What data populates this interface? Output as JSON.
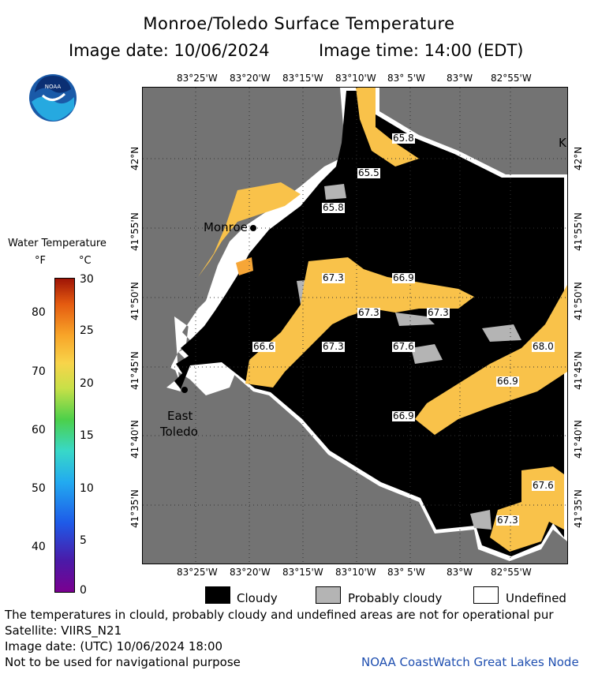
{
  "header": {
    "title": "Monroe/Toledo Surface Temperature",
    "image_date": "Image date: 10/06/2024",
    "image_time": "Image time: 14:00 (EDT)"
  },
  "logo": {
    "text": "NOAA"
  },
  "colorbar": {
    "title": "Water Temperature",
    "unit_f": "°F",
    "unit_c": "°C",
    "f_ticks": [
      "80",
      "70",
      "60",
      "50",
      "40"
    ],
    "c_ticks": [
      "30",
      "25",
      "20",
      "15",
      "10",
      "5",
      "0"
    ]
  },
  "map": {
    "lon_ticks": [
      "83°25'W",
      "83°20'W",
      "83°15'W",
      "83°10'W",
      "83° 5'W",
      "83°W",
      "82°55'W"
    ],
    "lat_ticks": [
      "42°N",
      "41°55'N",
      "41°50'N",
      "41°45'N",
      "41°40'N",
      "41°35'N"
    ],
    "places": [
      "Monroe",
      "East",
      "Toledo",
      "K"
    ],
    "temperatures": [
      "65.8",
      "65.5",
      "65.8",
      "67.3",
      "66.9",
      "67.3",
      "67.3",
      "66.6",
      "67.3",
      "67.6",
      "68.0",
      "66.9",
      "66.9",
      "67.6",
      "67.3"
    ]
  },
  "legend": {
    "cloudy": "Cloudy",
    "probably_cloudy": "Probably cloudy",
    "undefined": "Undefined",
    "colors": {
      "cloudy": "#000000",
      "probably_cloudy": "#b4b4b4",
      "undefined": "#ffffff",
      "land": "#737373",
      "water_warm": "#f9c24a"
    }
  },
  "footer": {
    "note": "The temperatures in clould, probably cloudy and undefined areas are not for operational pur",
    "satellite": "Satellite: VIIRS_N21",
    "utc_date": "Image date: (UTC) 10/06/2024  18:00",
    "nav_note": "Not to be used for navigational purpose",
    "credit": "NOAA CoastWatch Great Lakes Node"
  }
}
